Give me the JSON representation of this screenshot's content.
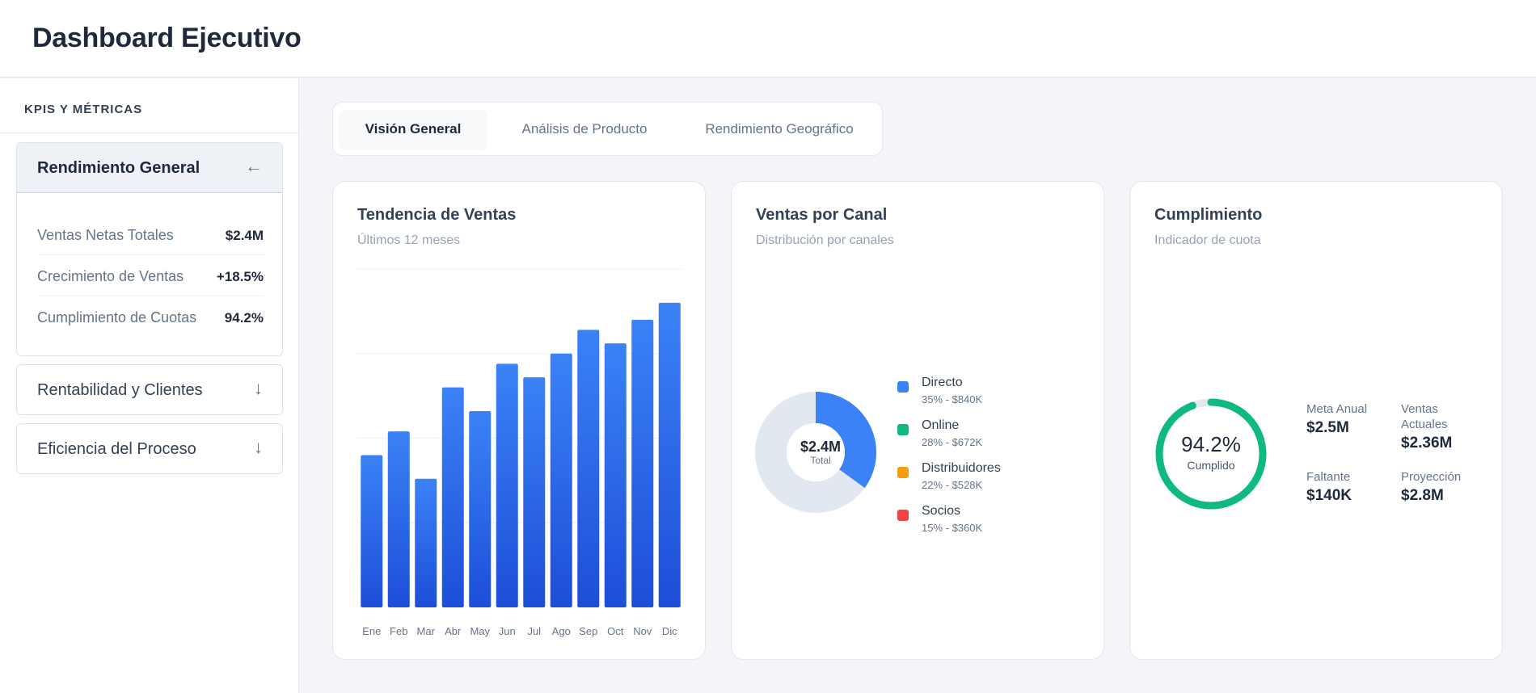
{
  "header": {
    "title": "Dashboard Ejecutivo"
  },
  "sidebar": {
    "heading": "KPIS Y MÉTRICAS",
    "sections": [
      {
        "title": "Rendimiento General",
        "arrow": "←",
        "expanded": true,
        "metrics": [
          {
            "label": "Ventas Netas Totales",
            "value": "$2.4M"
          },
          {
            "label": "Crecimiento de Ventas",
            "value": "+18.5%"
          },
          {
            "label": "Cumplimiento de Cuotas",
            "value": "94.2%"
          }
        ]
      },
      {
        "title": "Rentabilidad y Clientes",
        "arrow": "↓",
        "expanded": false
      },
      {
        "title": "Eficiencia del Proceso",
        "arrow": "↓",
        "expanded": false
      }
    ]
  },
  "tabs": [
    {
      "label": "Visión General",
      "active": true
    },
    {
      "label": "Análisis de Producto",
      "active": false
    },
    {
      "label": "Rendimiento Geográfico",
      "active": false
    }
  ],
  "cards": {
    "sales": {
      "title": "Tendencia de Ventas",
      "subtitle": "Últimos 12 meses"
    },
    "channels": {
      "title": "Ventas por Canal",
      "subtitle": "Distribución por canales",
      "center_value": "$2.4M",
      "center_label": "Total",
      "legend": [
        {
          "name": "Directo",
          "detail": "35% - $840K",
          "color": "#3b82f6"
        },
        {
          "name": "Online",
          "detail": "28% - $672K",
          "color": "#10b981"
        },
        {
          "name": "Distribuidores",
          "detail": "22% - $528K",
          "color": "#f59e0b"
        },
        {
          "name": "Socios",
          "detail": "15% - $360K",
          "color": "#ef4444"
        }
      ]
    },
    "compliance": {
      "title": "Cumplimiento",
      "subtitle": "Indicador de cuota",
      "gauge_value": "94.2%",
      "gauge_label": "Cumplido",
      "gauge_fraction": 0.942,
      "stats": [
        {
          "label": "Meta Anual",
          "value": "$2.5M"
        },
        {
          "label": "Ventas Actuales",
          "value": "$2.36M"
        },
        {
          "label": "Faltante",
          "value": "$140K"
        },
        {
          "label": "Proyección",
          "value": "$2.8M"
        }
      ]
    }
  },
  "colors": {
    "bar": "#2f6bf0",
    "donut_highlight": "#3b82f6",
    "donut_track": "#e2e8f0",
    "gauge": "#10b981"
  },
  "chart_data": [
    {
      "type": "bar",
      "categories": [
        "Ene",
        "Feb",
        "Mar",
        "Abr",
        "May",
        "Jun",
        "Jul",
        "Ago",
        "Sep",
        "Oct",
        "Nov",
        "Dic"
      ],
      "values": [
        45,
        52,
        38,
        65,
        58,
        72,
        68,
        75,
        82,
        78,
        85,
        90
      ],
      "ylim": [
        0,
        100
      ],
      "grid": true
    },
    {
      "type": "pie",
      "categories": [
        "Directo",
        "Online",
        "Distribuidores",
        "Socios"
      ],
      "values": [
        35,
        28,
        22,
        15
      ],
      "highlighted": "Directo",
      "center_text": "$2.4M"
    }
  ]
}
